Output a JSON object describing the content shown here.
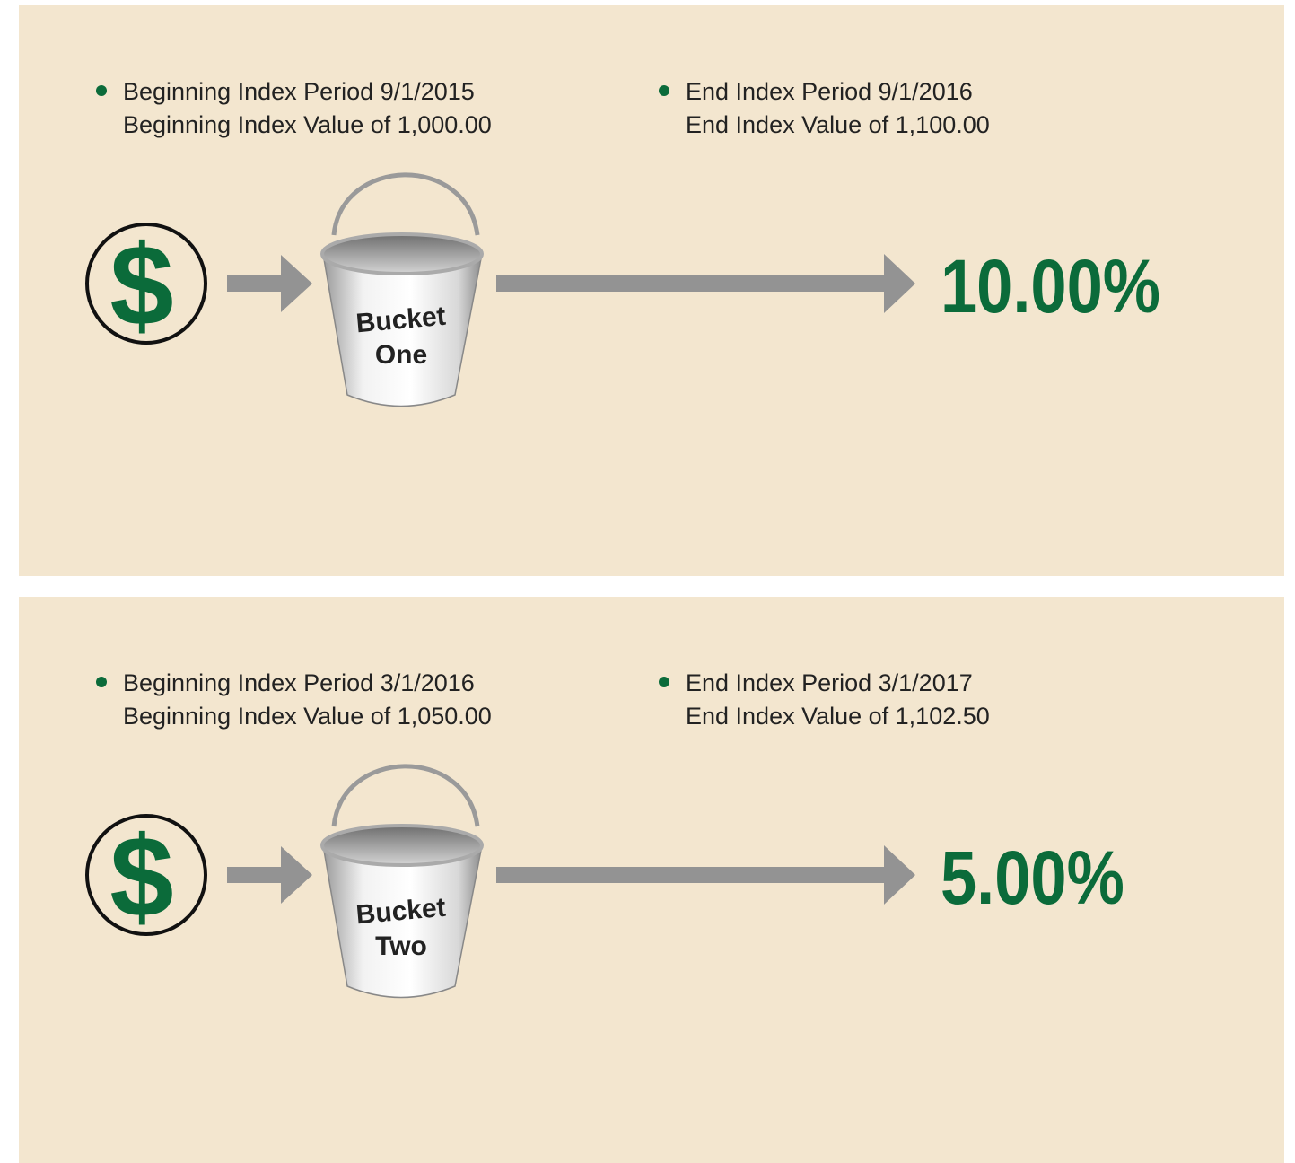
{
  "panels": [
    {
      "begin": {
        "period": "Beginning Index Period 9/1/2015",
        "value": "Beginning Index Value of 1,000.00"
      },
      "end": {
        "period": "End Index Period 9/1/2016",
        "value": "End Index Value of 1,100.00"
      },
      "symbol": "$",
      "bucket": [
        "Bucket",
        "One"
      ],
      "result": "10.00%"
    },
    {
      "begin": {
        "period": "Beginning Index Period 3/1/2016",
        "value": "Beginning Index Value of 1,050.00"
      },
      "end": {
        "period": "End Index Period 3/1/2017",
        "value": "End Index Value of 1,102.50"
      },
      "symbol": "$",
      "bucket": [
        "Bucket",
        "Two"
      ],
      "result": "5.00%"
    }
  ]
}
